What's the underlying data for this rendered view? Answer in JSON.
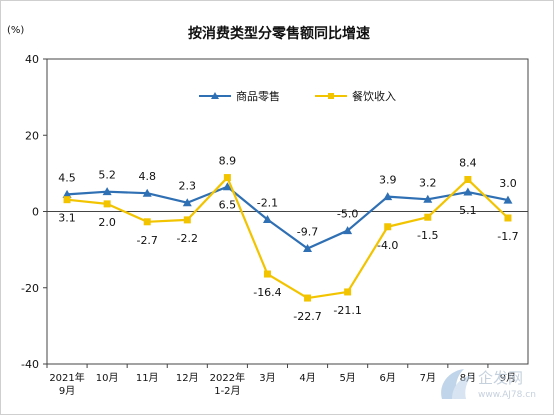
{
  "chart_data": {
    "type": "line",
    "title": "按消费类型分零售额同比增速",
    "ylabel": "(%)",
    "ylim": [
      -40,
      40
    ],
    "yticks": [
      40,
      20,
      0,
      -20,
      -40
    ],
    "grid": false,
    "legend_position": "top-center",
    "categories": [
      [
        "2021年",
        "9月"
      ],
      [
        "10月"
      ],
      [
        "11月"
      ],
      [
        "12月"
      ],
      [
        "2022年",
        "1-2月"
      ],
      [
        "3月"
      ],
      [
        "4月"
      ],
      [
        "5月"
      ],
      [
        "6月"
      ],
      [
        "7月"
      ],
      [
        "8月"
      ],
      [
        "9月"
      ]
    ],
    "series": [
      {
        "name": "商品零售",
        "color": "#2f6fb3",
        "marker": "triangle",
        "values": [
          4.5,
          5.2,
          4.8,
          2.3,
          6.5,
          -2.1,
          -9.7,
          -5.0,
          3.9,
          3.2,
          5.1,
          3.0
        ],
        "labels": [
          "4.5",
          "5.2",
          "4.8",
          "2.3",
          "6.5",
          "-2.1",
          "-9.7",
          "-5.0",
          "3.9",
          "3.2",
          "5.1",
          "3.0"
        ]
      },
      {
        "name": "餐饮收入",
        "color": "#f2c400",
        "marker": "square",
        "values": [
          3.1,
          2.0,
          -2.7,
          -2.2,
          8.9,
          -16.4,
          -22.7,
          -21.1,
          -4.0,
          -1.5,
          8.4,
          -1.7
        ],
        "labels": [
          "3.1",
          "2.0",
          "-2.7",
          "-2.2",
          "8.9",
          "-16.4",
          "-22.7",
          "-21.1",
          "-4.0",
          "-1.5",
          "8.4",
          "-1.7"
        ]
      }
    ]
  },
  "watermark": {
    "text": "企发网",
    "subtext": "www.AJ78.cn"
  }
}
